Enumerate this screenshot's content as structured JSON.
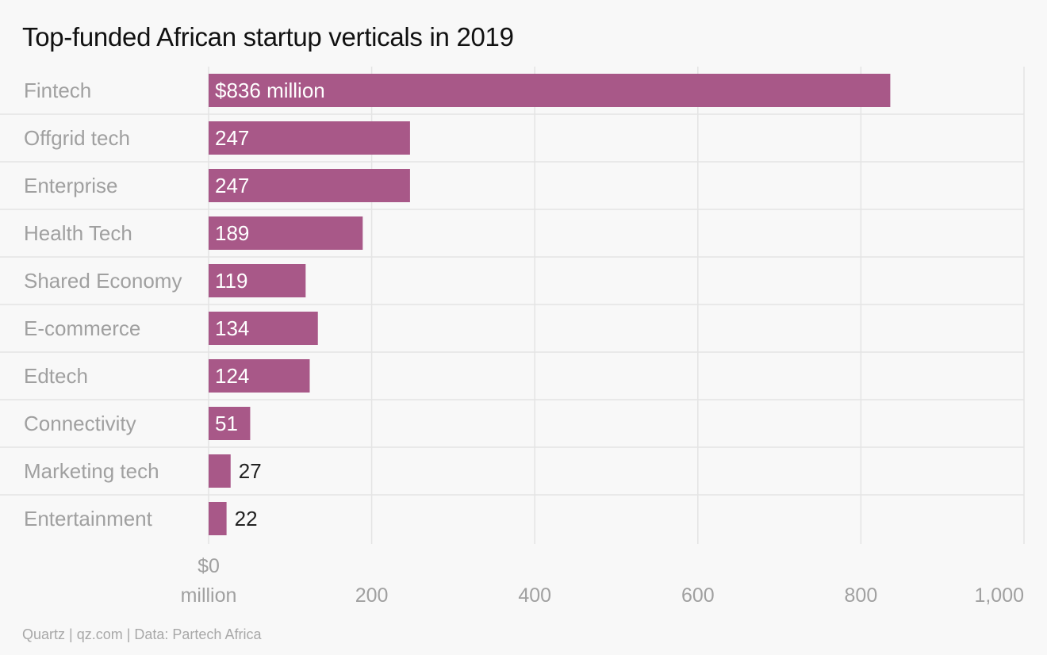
{
  "source": "Quartz | qz.com | Data: Partech Africa",
  "colors": {
    "bar": "#a85888",
    "grid": "#e4e4e4",
    "label_inside": "#ffffff",
    "label_outside": "#222222",
    "axis_text": "#a0a0a0"
  },
  "chart_data": {
    "type": "bar",
    "orientation": "horizontal",
    "title": "Top-funded African startup verticals in 2019",
    "categories": [
      "Fintech",
      "Offgrid tech",
      "Enterprise",
      "Health Tech",
      "Shared Economy",
      "E-commerce",
      "Edtech",
      "Connectivity",
      "Marketing tech",
      "Entertainment"
    ],
    "values": [
      836,
      247,
      247,
      189,
      119,
      134,
      124,
      51,
      27,
      22
    ],
    "value_labels": [
      "$836 million",
      "247",
      "247",
      "189",
      "119",
      "134",
      "124",
      "51",
      "27",
      "22"
    ],
    "xlim": [
      0,
      1000
    ],
    "x_ticks": [
      0,
      200,
      400,
      600,
      800,
      1000
    ],
    "x_tick_labels": [
      [
        "$0",
        "million"
      ],
      [
        "200"
      ],
      [
        "400"
      ],
      [
        "600"
      ],
      [
        "800"
      ],
      [
        "1,000"
      ]
    ],
    "grid": true,
    "legend": "none"
  }
}
